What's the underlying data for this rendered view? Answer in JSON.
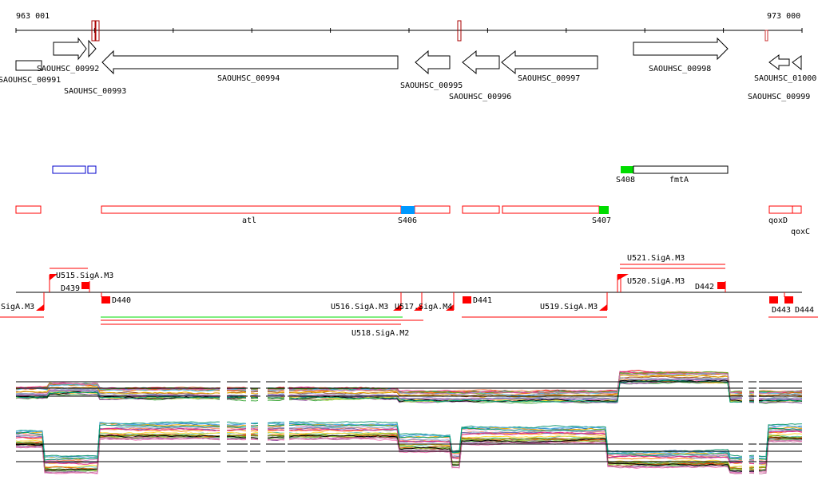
{
  "ruler": {
    "start_label": "963 001",
    "end_label": "973 000"
  },
  "genes": [
    {
      "label": "SAOUHSC_00991"
    },
    {
      "label": "SAOUHSC_00992"
    },
    {
      "label": "SAOUHSC_00993"
    },
    {
      "label": "SAOUHSC_00994"
    },
    {
      "label": "SAOUHSC_00995"
    },
    {
      "label": "SAOUHSC_00996"
    },
    {
      "label": "SAOUHSC_00997"
    },
    {
      "label": "SAOUHSC_00998"
    },
    {
      "label": "SAOUHSC_00999"
    },
    {
      "label": "SAOUHSC_01000"
    }
  ],
  "features": {
    "s408": "S408",
    "fmta": "fmtA",
    "atl": "atl",
    "s406": "S406",
    "s407": "S407",
    "qoxd": "qoxD",
    "qoxc": "qoxC"
  },
  "promoters": {
    "u514": ".SigA.M3",
    "u515": "U515.SigA.M3",
    "d439": "D439",
    "d440": "D440",
    "u516": "U516.SigA.M3",
    "u517": "U517.SigA.M4",
    "u518": "U518.SigA.M2",
    "d441": "D441",
    "u519": "U519.SigA.M3",
    "u520": "U520.SigA.M3",
    "u521": "U521.SigA.M3",
    "d442": "D442",
    "d443": "D443",
    "d444": "D444"
  },
  "colors": {
    "feature": "#ff0000",
    "blue_box": "#0000cc",
    "s406": "#0099ff",
    "green": "#00dd00",
    "traces": [
      "#e41a1c",
      "#377eb8",
      "#4daf4a",
      "#984ea3",
      "#ff7f00",
      "#a65628",
      "#f781bf",
      "#999999",
      "#66c2a5",
      "#fc8d62",
      "#8da0cb",
      "#e78ac3",
      "#a6d854",
      "#ffd92f",
      "#1b9e77",
      "#d95f02",
      "#7570b3",
      "#e7298a",
      "#66a61e",
      "#e6ab02",
      "#000000",
      "#56b4e9",
      "#009e73",
      "#cc79a7"
    ]
  }
}
